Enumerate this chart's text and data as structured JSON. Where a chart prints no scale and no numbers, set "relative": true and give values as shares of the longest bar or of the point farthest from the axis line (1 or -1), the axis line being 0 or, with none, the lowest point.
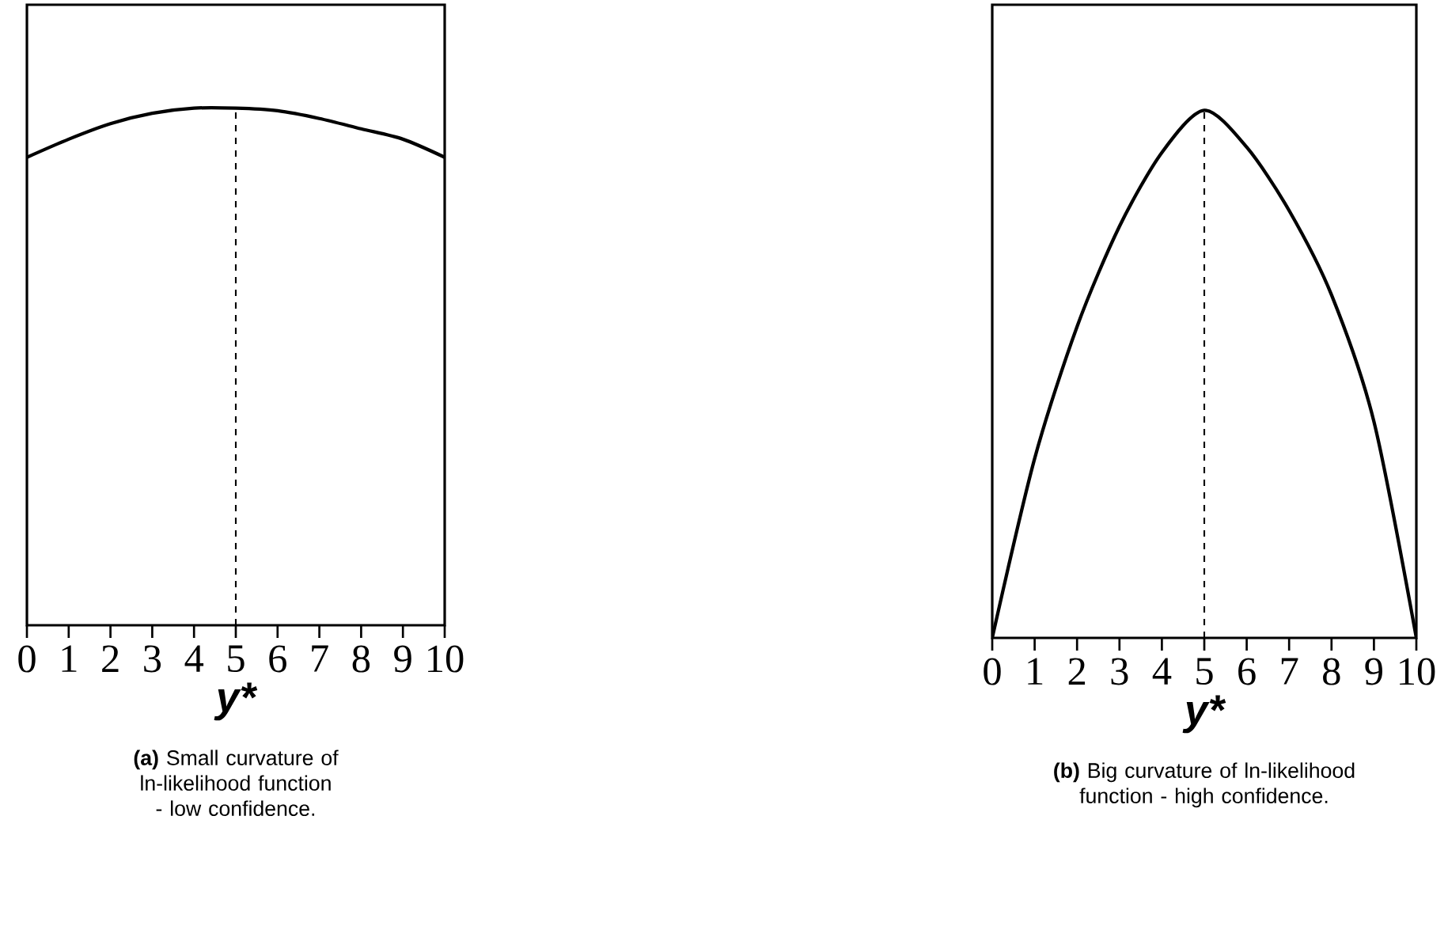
{
  "chart_data": [
    {
      "type": "line",
      "title": "**(a)** Small curvature of ln-likelihood function - low confidence.",
      "xlabel": "y*",
      "x": [
        0,
        1,
        2,
        3,
        4,
        5,
        6,
        7,
        8,
        9,
        10
      ],
      "relative": true,
      "series": [
        {
          "color": "#000000",
          "values": [
            0.905,
            0.94,
            0.97,
            0.99,
            1.0,
            1.0,
            0.995,
            0.98,
            0.96,
            0.94,
            0.905
          ]
        }
      ],
      "xlim": [
        0,
        10
      ],
      "xticks": [
        0,
        1,
        2,
        3,
        4,
        5,
        6,
        7,
        8,
        9,
        10
      ],
      "tick_labels": "x",
      "marker": "none",
      "ref_lines": [
        {
          "axis": "x",
          "value": 5,
          "color": "#000000",
          "line_style": "dashed"
        }
      ]
    },
    {
      "type": "line",
      "title": "**(b)** Big curvature of ln-likelihood function - high confidence.",
      "xlabel": "y*",
      "x": [
        0,
        1,
        2,
        3,
        4,
        5,
        6,
        7,
        8,
        9,
        10
      ],
      "relative": true,
      "series": [
        {
          "color": "#000000",
          "values": [
            0,
            0.34,
            0.59,
            0.78,
            0.92,
            1.0,
            0.93,
            0.81,
            0.65,
            0.41,
            0
          ]
        }
      ],
      "xlim": [
        0,
        10
      ],
      "xticks": [
        0,
        1,
        2,
        3,
        4,
        5,
        6,
        7,
        8,
        9,
        10
      ],
      "tick_labels": "x",
      "marker": "none",
      "ref_lines": [
        {
          "axis": "x",
          "value": 5,
          "color": "#000000",
          "line_style": "dashed"
        }
      ]
    }
  ]
}
